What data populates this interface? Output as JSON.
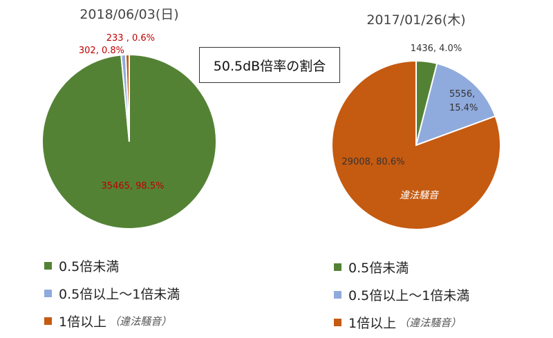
{
  "center_label": "50.5dB倍率の割合",
  "colors": {
    "lt05": "#548235",
    "mid": "#8faadc",
    "ge1": "#c55a11"
  },
  "legend": {
    "item1": "0.5倍未満",
    "item2": "0.5倍以上～1倍未満",
    "item3": "1倍以上",
    "item3_note": "（違法騒音）"
  },
  "chart_data": [
    {
      "type": "pie",
      "title": "2018/06/03(日)",
      "slices": [
        {
          "label": "0.5倍未満",
          "value": 35465,
          "percent": 98.5,
          "data_label": "35465, 98.5%"
        },
        {
          "label": "0.5倍以上～1倍未満",
          "value": 302,
          "percent": 0.8,
          "data_label": "302, 0.8%"
        },
        {
          "label": "1倍以上",
          "value": 233,
          "percent": 0.6,
          "data_label": "233 , 0.6%"
        }
      ]
    },
    {
      "type": "pie",
      "title": "2017/01/26(木)",
      "annotation": "違法騒音",
      "slices": [
        {
          "label": "0.5倍未満",
          "value": 1436,
          "percent": 4.0,
          "data_label": "1436, 4.0%"
        },
        {
          "label": "0.5倍以上～1倍未満",
          "value": 5556,
          "percent": 15.4,
          "data_label": "5556, 15.4%"
        },
        {
          "label": "1倍以上",
          "value": 29008,
          "percent": 80.6,
          "data_label": "29008, 80.6%"
        }
      ]
    }
  ]
}
